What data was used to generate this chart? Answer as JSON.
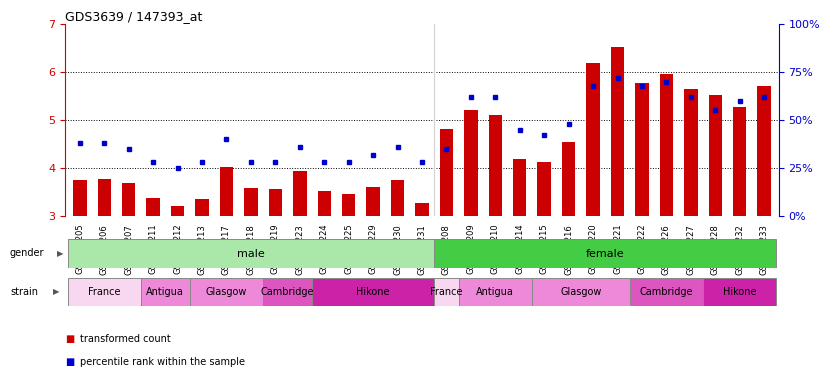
{
  "title": "GDS3639 / 147393_at",
  "samples": [
    "GSM231205",
    "GSM231206",
    "GSM231207",
    "GSM231211",
    "GSM231212",
    "GSM231213",
    "GSM231217",
    "GSM231218",
    "GSM231219",
    "GSM231223",
    "GSM231224",
    "GSM231225",
    "GSM231229",
    "GSM231230",
    "GSM231231",
    "GSM231208",
    "GSM231209",
    "GSM231210",
    "GSM231214",
    "GSM231215",
    "GSM231216",
    "GSM231220",
    "GSM231221",
    "GSM231222",
    "GSM231226",
    "GSM231227",
    "GSM231228",
    "GSM231232",
    "GSM231233"
  ],
  "bar_values": [
    3.75,
    3.78,
    3.68,
    3.38,
    3.22,
    3.35,
    4.02,
    3.58,
    3.57,
    3.93,
    3.52,
    3.45,
    3.6,
    3.75,
    3.28,
    4.82,
    5.2,
    5.1,
    4.18,
    4.12,
    4.55,
    6.18,
    6.52,
    5.78,
    5.95,
    5.65,
    5.52,
    5.28,
    5.72
  ],
  "dot_values_pct": [
    38,
    38,
    35,
    28,
    25,
    28,
    40,
    28,
    28,
    36,
    28,
    28,
    32,
    36,
    28,
    35,
    62,
    62,
    45,
    42,
    48,
    68,
    72,
    68,
    70,
    62,
    55,
    60,
    62
  ],
  "ylim_left": [
    3,
    7
  ],
  "ylim_right": [
    0,
    100
  ],
  "yticks_left": [
    3,
    4,
    5,
    6,
    7
  ],
  "yticks_right": [
    0,
    25,
    50,
    75,
    100
  ],
  "bar_color": "#cc0000",
  "dot_color": "#0000cc",
  "bar_bottom": 3,
  "gender_male_color": "#aae8aa",
  "gender_female_color": "#44cc44",
  "male_strains": [
    "France",
    "Antigua",
    "Glasgow",
    "Cambridge",
    "Hikone"
  ],
  "female_strains": [
    "France",
    "Antigua",
    "Glasgow",
    "Cambridge",
    "Hikone"
  ],
  "male_strain_counts": [
    3,
    2,
    3,
    2,
    5
  ],
  "female_strain_counts": [
    1,
    3,
    4,
    3,
    3
  ],
  "strain_bg_colors": [
    "#f8d8f0",
    "#ee88d8",
    "#ee88d8",
    "#dd55c0",
    "#cc22a8"
  ],
  "legend_items": [
    "transformed count",
    "percentile rank within the sample"
  ],
  "n_male": 15,
  "n_female": 14
}
